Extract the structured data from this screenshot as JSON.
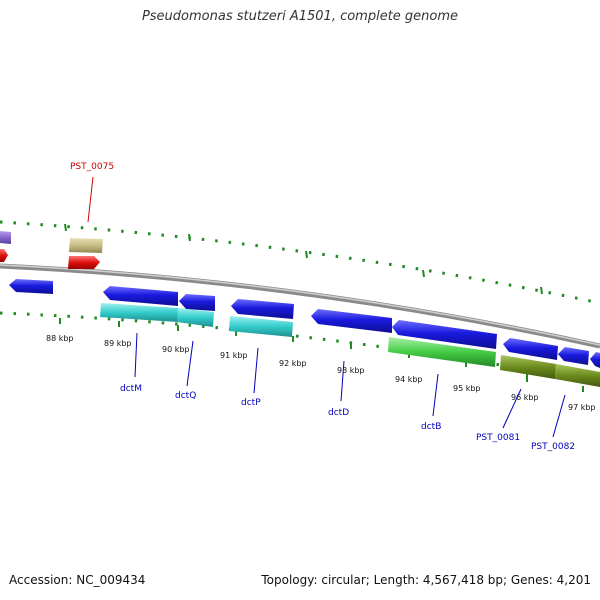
{
  "title": "Pseudomonas stutzeri A1501, complete genome",
  "footer": {
    "accession": "Accession: NC_009434",
    "summary": "Topology: circular; Length: 4,567,418 bp; Genes: 4,201"
  },
  "scale_labels": [
    "88 kbp",
    "89 kbp",
    "90 kbp",
    "91 kbp",
    "92 kbp",
    "93 kbp",
    "94 kbp",
    "95 kbp",
    "96 kbp",
    "97 kbp"
  ],
  "gene_labels": [
    {
      "text": "PST_0075",
      "color": "#cc0000"
    },
    {
      "text": "dctM",
      "color": "#0000bb"
    },
    {
      "text": "dctQ",
      "color": "#0000bb"
    },
    {
      "text": "dctP",
      "color": "#0000bb"
    },
    {
      "text": "dctD",
      "color": "#0000bb"
    },
    {
      "text": "dctB",
      "color": "#0000bb"
    },
    {
      "text": "PST_0081",
      "color": "#0000bb"
    },
    {
      "text": "PST_0082",
      "color": "#0000bb"
    }
  ],
  "colors": {
    "backbone": "#8a8a8a",
    "scale": "#1f8a1f",
    "blue_gene": "#1a1adf",
    "cyan_gene": "#33cccc",
    "green_gene": "#44cc44",
    "olive_gene": "#6b8c1e",
    "red_gene": "#e01010",
    "tan_gene": "#c8bd84",
    "purple_gene": "#8866cc"
  }
}
